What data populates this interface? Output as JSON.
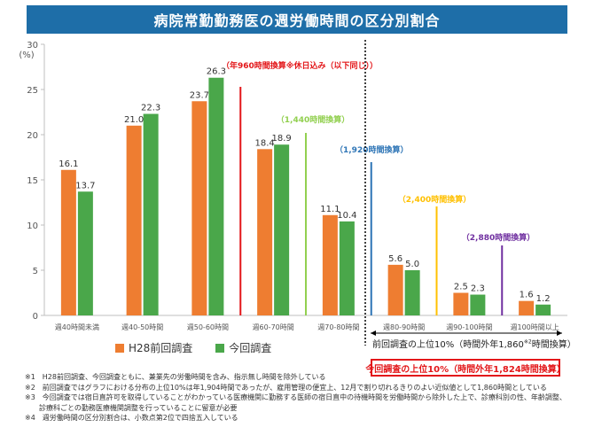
{
  "title": "病院常勤勤務医の週労働時間の区分別割合",
  "colors": {
    "title_bg": "#1e6ea8",
    "h28": "#ee7d31",
    "current": "#4aa74a",
    "red": "#e3171a",
    "green": "#92d050",
    "blue": "#2e75b6",
    "yellow": "#ffc000",
    "purple": "#7030a0"
  },
  "chart_data": {
    "type": "bar",
    "title": "病院常勤勤務医の週労働時間の区分別割合",
    "ylabel": "(%)",
    "xlabel": "",
    "ylim": [
      0,
      30
    ],
    "yticks": [
      0,
      5,
      10,
      15,
      20,
      25,
      30
    ],
    "grid": false,
    "legend_position": "bottom-left",
    "categories": [
      "週40時間未満",
      "週40-50時間",
      "週50-60時間",
      "週60-70時間",
      "週70-80時間",
      "週80-90時間",
      "週90-100時間",
      "週100時間以上"
    ],
    "series": [
      {
        "name": "H28前回調査",
        "color": "#ee7d31",
        "values": [
          16.1,
          21.0,
          23.7,
          18.4,
          11.1,
          5.6,
          2.5,
          1.6
        ],
        "labels": [
          "16.1",
          "21.0",
          "23.7",
          "18.4",
          "11.1",
          "5.6",
          "2.5",
          "1.6"
        ]
      },
      {
        "name": "今回調査",
        "color": "#4aa74a",
        "values": [
          13.7,
          22.3,
          26.3,
          18.9,
          10.4,
          5.0,
          2.3,
          1.2
        ],
        "labels": [
          "13.7",
          "22.3",
          "26.3",
          "18.9",
          "10.4",
          "5.0",
          "2.3",
          "1.2"
        ]
      }
    ],
    "annotations": [
      {
        "text": "（年960時間換算※休日込み（以下同じ））",
        "color": "#e3171a",
        "after_category": 2
      },
      {
        "text": "（1,440時間換算）",
        "color": "#92d050",
        "after_category": 3
      },
      {
        "text": "（1,920時間換算）",
        "color": "#2e75b6",
        "after_category": 4
      },
      {
        "text": "（2,400時間換算）",
        "color": "#ffc000",
        "after_category": 5
      },
      {
        "text": "（2,880時間換算）",
        "color": "#7030a0",
        "after_category": 6
      }
    ]
  },
  "boxes": {
    "prev_main": "前回調査の上位10%（時間外年1,860",
    "prev_sup": "※2",
    "prev_end": "時間換算）",
    "current": "今回調査の上位10%（時間外年1,824時間換算）"
  },
  "notes": [
    "※1　H28前回調査、今回調査ともに、兼業先の労働時間を含み、指示無し時間を除外している",
    "※2　前回調査ではグラフにおける分布の上位10%は年1,904時間であったが、雇用管理の便宜上、12月で割り切れるきりのよい近似値として1,860時間としている",
    "※3　今回調査では宿日直許可を取得していることがわかっている医療機関に勤務する医師の宿日直中の待機時間を労働時間から除外した上で、診療科別の性、年齢調整、",
    "　　診療科ごとの勤務医療機関調整を行っていることに留意が必要",
    "※4　週労働時間の区分別割合は、小数点第2位で四捨五入している"
  ]
}
